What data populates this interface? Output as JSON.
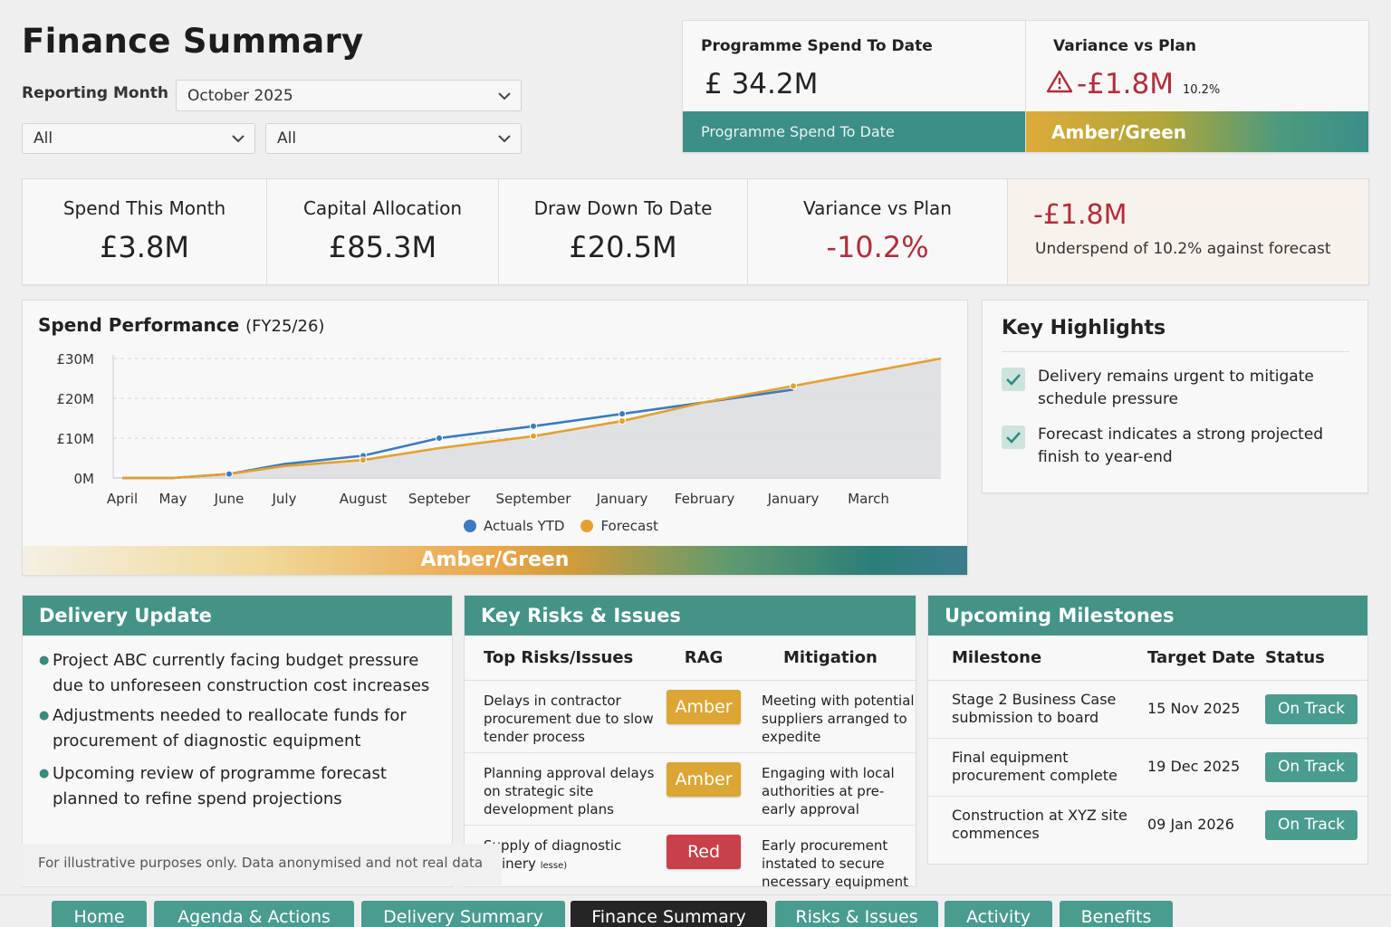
{
  "page_title": "Finance Summary",
  "filters": {
    "reporting_month_label": "Reporting Month",
    "reporting_month_value": "October 2025",
    "filter1_value": "All",
    "filter2_value": "All"
  },
  "top_kpis": {
    "spend_label": "Programme Spend To Date",
    "spend_value": "£ 34.2M",
    "spend_bar": "Programme Spend To Date",
    "variance_label": "Variance vs Plan",
    "variance_value": "-£1.8M",
    "variance_pct": "10.2%",
    "variance_bar": "Amber/Green"
  },
  "kpi_row": {
    "spend_month_label": "Spend This Month",
    "spend_month_value": "£3.8M",
    "capital_label": "Capital Allocation",
    "capital_value": "£85.3M",
    "drawdown_label": "Draw Down To Date",
    "drawdown_value": "£20.5M",
    "variance_label": "Variance vs Plan",
    "variance_value": "-10.2%",
    "underspend_value": "-£1.8M",
    "underspend_text": "Underspend of 10.2% against forecast"
  },
  "chart": {
    "title": "Spend Performance",
    "subtitle": "(FY25/26)",
    "rag_label": "Amber/Green"
  },
  "chart_data": {
    "type": "line",
    "title": "Spend Performance (FY25/26)",
    "categories": [
      "April",
      "May",
      "June",
      "July",
      "August",
      "Septeber",
      "September",
      "January",
      "February",
      "January",
      "March"
    ],
    "y_ticks": [
      "£30M",
      "£20M",
      "£10M",
      "0M"
    ],
    "ylim": [
      0,
      30
    ],
    "series": [
      {
        "name": "Actuals YTD",
        "color": "#3b7bbf",
        "values": [
          0,
          0,
          1,
          3.5,
          5.6,
          10,
          13,
          16.1,
          19,
          22.2,
          null
        ]
      },
      {
        "name": "Forecast",
        "color": "#e4a02f",
        "values": [
          0,
          0,
          1,
          3,
          4.5,
          7.5,
          10.5,
          14.3,
          19,
          23.1,
          30
        ]
      }
    ],
    "legend_position": "bottom",
    "grid": true
  },
  "highlights": {
    "title": "Key Highlights",
    "items": [
      "Delivery remains urgent to mitigate schedule pressure",
      "Forecast indicates a strong projected finish to year-end"
    ]
  },
  "delivery": {
    "title": "Delivery Update",
    "items": [
      "Project ABC currently facing budget pressure due to unforeseen construction cost increases",
      "Adjustments needed to reallocate funds for procurement of diagnostic equipment",
      "Upcoming review of programme forecast planned to refine spend projections"
    ],
    "disclaimer": "For illustrative purposes only. Data anonymised and not real data"
  },
  "risks": {
    "title": "Key Risks & Issues",
    "headers": [
      "Top Risks/Issues",
      "RAG",
      "Mitigation"
    ],
    "rows": [
      {
        "risk": "Delays in contractor procurement due to slow tender process",
        "rag": "Amber",
        "mitigation": "Meeting with potential suppliers arranged to expedite"
      },
      {
        "risk": "Planning approval delays on strategic site development plans",
        "rag": "Amber",
        "mitigation": "Engaging with local authorities at pre-early approval"
      },
      {
        "risk": "Supply of diagnostic Chinery",
        "risk_small": "lesse)",
        "rag": "Red",
        "mitigation": "Early procurement instated to secure necessary equipment"
      }
    ]
  },
  "milestones": {
    "title": "Upcoming Milestones",
    "headers": [
      "Milestone",
      "Target Date",
      "Status"
    ],
    "rows": [
      {
        "name": "Stage 2 Business Case submission to board",
        "date": "15 Nov 2025",
        "status": "On Track"
      },
      {
        "name": "Final equipment procurement complete",
        "date": "19 Dec 2025",
        "status": "On Track"
      },
      {
        "name": "Construction at XYZ site commences",
        "date": "09 Jan 2026",
        "status": "On Track"
      }
    ]
  },
  "nav": {
    "tabs": [
      "Home",
      "Agenda & Actions",
      "Delivery Summary",
      "Finance Summary",
      "Risks & Issues",
      "Activity",
      "Benefits"
    ],
    "active": "Finance Summary"
  },
  "colors": {
    "teal": "#439386",
    "amber": "#dba634",
    "red": "#c8404a",
    "negative_text": "#b22d3c"
  }
}
